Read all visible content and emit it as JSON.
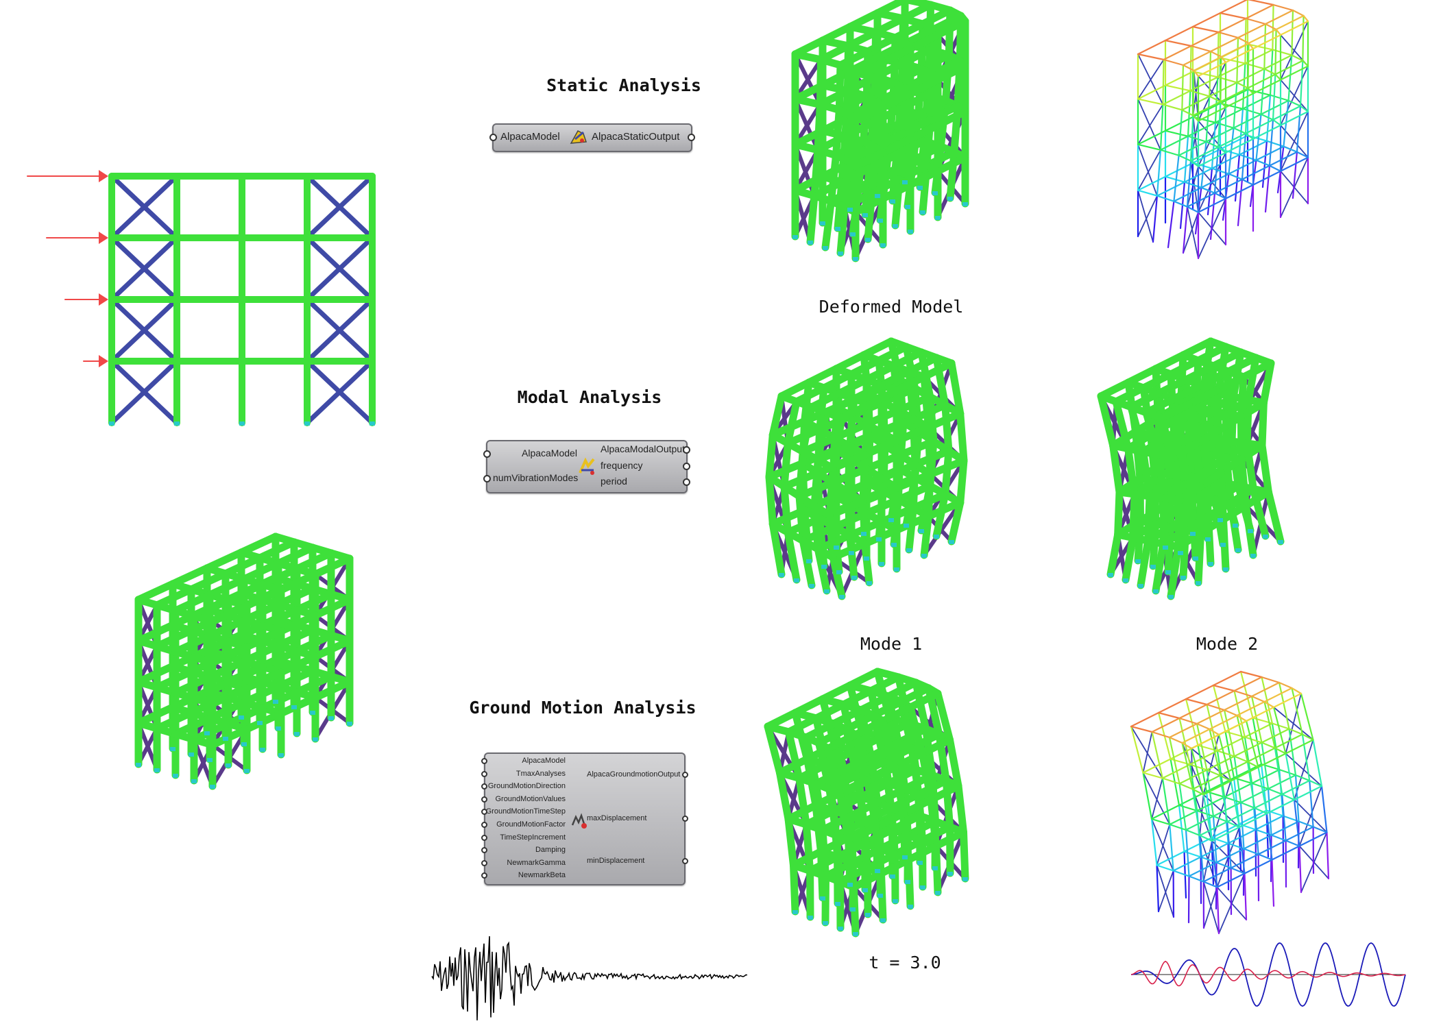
{
  "sections": {
    "static": {
      "title": "Static Analysis"
    },
    "modal": {
      "title": "Modal Analysis"
    },
    "ground": {
      "title": "Ground Motion Analysis"
    }
  },
  "components": {
    "static": {
      "input": "AlpacaModel",
      "output": "AlpacaStaticOutput",
      "icon": "alpaca-static-icon"
    },
    "modal": {
      "inputs": [
        "AlpacaModel",
        "numVibrationModes"
      ],
      "outputs": [
        "AlpacaModalOutput",
        "frequency",
        "period"
      ],
      "icon": "alpaca-modal-icon"
    },
    "ground": {
      "inputs": [
        "AlpacaModel",
        "TmaxAnalyses",
        "GroundMotionDirection",
        "GroundMotionValues",
        "GroundMotionTimeStep",
        "GroundMotionFactor",
        "TimeStepIncrement",
        "Damping",
        "NewmarkGamma",
        "NewmarkBeta"
      ],
      "outputs": [
        "AlpacaGroundmotionOutput",
        "maxDisplacement",
        "minDisplacement"
      ],
      "icon": "alpaca-ground-icon"
    }
  },
  "captions": {
    "deformed": "Deformed Model",
    "mode1": "Mode 1",
    "mode2": "Mode 2",
    "time": "t = 3.0"
  },
  "colors": {
    "member": "#3ee03a",
    "brace": "#3f4aa6",
    "load_arrow": "#f04848",
    "support": "#29c9c9"
  }
}
